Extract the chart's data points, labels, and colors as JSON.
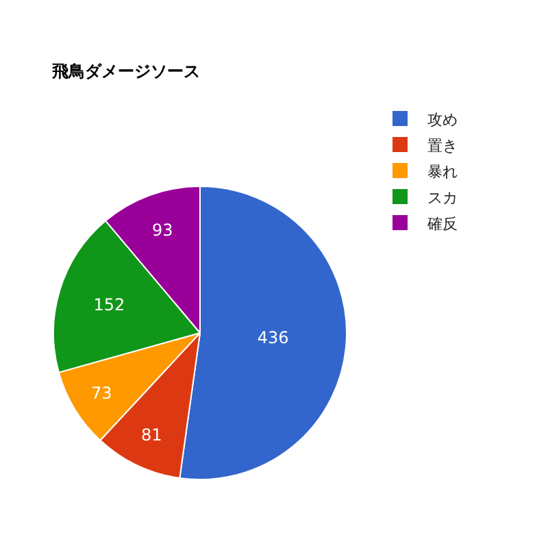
{
  "chart_data": {
    "type": "pie",
    "title": "飛鳥ダメージソース",
    "categories": [
      "攻め",
      "置き",
      "暴れ",
      "スカ",
      "確反"
    ],
    "values": [
      436,
      81,
      73,
      152,
      93
    ],
    "colors": [
      "#3366cc",
      "#dc3912",
      "#ff9900",
      "#109618",
      "#990099"
    ],
    "data_labels": true,
    "legend": "right"
  }
}
